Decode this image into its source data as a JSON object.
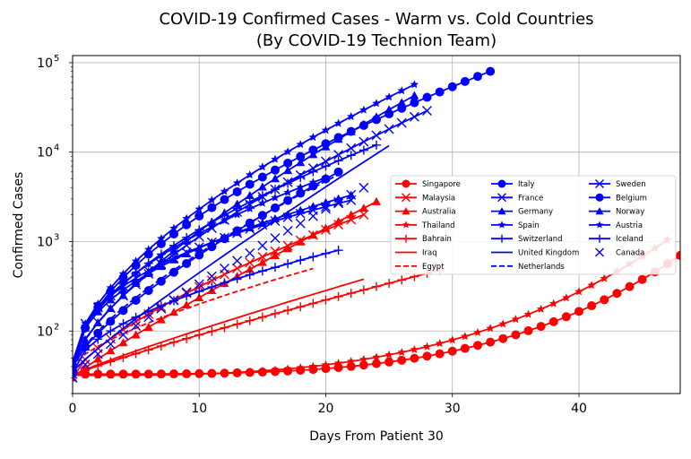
{
  "chart_data": {
    "type": "line",
    "title_line1": "COVID-19 Confirmed Cases - Warm vs. Cold Countries",
    "title_line2": "(By COVID-19 Technion Team)",
    "xlabel": "Days From Patient 30",
    "ylabel": "Confirmed Cases",
    "xlim": [
      0,
      48
    ],
    "ylim": [
      20,
      120000
    ],
    "yscale": "log",
    "grid": true,
    "legend_position": "center-right",
    "x_ticks": [
      {
        "value": 0,
        "label": "0"
      },
      {
        "value": 10,
        "label": "10"
      },
      {
        "value": 20,
        "label": "20"
      },
      {
        "value": 30,
        "label": "30"
      },
      {
        "value": 40,
        "label": "40"
      }
    ],
    "y_ticks": [
      {
        "value": 100,
        "base": "10",
        "exp": "2"
      },
      {
        "value": 1000,
        "base": "10",
        "exp": "3"
      },
      {
        "value": 10000,
        "base": "10",
        "exp": "4"
      },
      {
        "value": 100000,
        "base": "10",
        "exp": "5"
      }
    ],
    "series": [
      {
        "name": "Singapore",
        "color": "#ff0000",
        "marker": "circle",
        "dash": "solid",
        "start": 33,
        "end": 700,
        "n": 49,
        "curve": 3.5
      },
      {
        "name": "Malaysia",
        "color": "#ff0000",
        "marker": "x",
        "dash": "solid",
        "start": 30,
        "end": 2000,
        "n": 24,
        "curve": 0.7
      },
      {
        "name": "Australia",
        "color": "#ff0000",
        "marker": "triangle",
        "dash": "solid",
        "start": 30,
        "end": 2800,
        "n": 25,
        "curve": 0.9
      },
      {
        "name": "Thailand",
        "color": "#ff0000",
        "marker": "star",
        "dash": "solid",
        "start": 32,
        "end": 1050,
        "n": 48,
        "curve": 3.0
      },
      {
        "name": "Bahrain",
        "color": "#ff0000",
        "marker": "plus",
        "dash": "solid",
        "start": 32,
        "end": 480,
        "n": 30,
        "curve": 0.9
      },
      {
        "name": "Iraq",
        "color": "#ff0000",
        "marker": "none",
        "dash": "solid",
        "start": 32,
        "end": 380,
        "n": 24,
        "curve": 0.9
      },
      {
        "name": "Egypt",
        "color": "#ff0000",
        "marker": "none",
        "dash": "dashed",
        "start": 40,
        "end": 500,
        "n": 20,
        "curve": 0.7
      },
      {
        "name": "Italy",
        "color": "#0000ff",
        "marker": "circle",
        "dash": "solid",
        "start": 35,
        "end": 80000,
        "n": 34,
        "curve": 0.55
      },
      {
        "name": "France",
        "color": "#0000ff",
        "marker": "x",
        "dash": "solid",
        "start": 38,
        "end": 29000,
        "n": 29,
        "curve": 0.65
      },
      {
        "name": "Germany",
        "color": "#0000ff",
        "marker": "triangle",
        "dash": "solid",
        "start": 40,
        "end": 43000,
        "n": 28,
        "curve": 0.7
      },
      {
        "name": "Spain",
        "color": "#0000ff",
        "marker": "star",
        "dash": "solid",
        "start": 45,
        "end": 57000,
        "n": 28,
        "curve": 0.6
      },
      {
        "name": "Switzerland",
        "color": "#0000ff",
        "marker": "plus",
        "dash": "solid",
        "start": 40,
        "end": 12000,
        "n": 25,
        "curve": 0.55
      },
      {
        "name": "United Kingdom",
        "color": "#0000ff",
        "marker": "none",
        "dash": "solid",
        "start": 35,
        "end": 11800,
        "n": 26,
        "curve": 0.9
      },
      {
        "name": "Netherlands",
        "color": "#0000ff",
        "marker": "none",
        "dash": "dashed",
        "start": 38,
        "end": 5600,
        "n": 22,
        "curve": 0.7
      },
      {
        "name": "Sweden",
        "color": "#0000ff",
        "marker": "x",
        "dash": "solid",
        "start": 33,
        "end": 2900,
        "n": 23,
        "curve": 0.4
      },
      {
        "name": "Belgium",
        "color": "#0000ff",
        "marker": "circle",
        "dash": "solid",
        "start": 40,
        "end": 6000,
        "n": 22,
        "curve": 0.75
      },
      {
        "name": "Norway",
        "color": "#0000ff",
        "marker": "triangle",
        "dash": "solid",
        "start": 35,
        "end": 3300,
        "n": 23,
        "curve": 0.45
      },
      {
        "name": "Austria",
        "color": "#0000ff",
        "marker": "star",
        "dash": "solid",
        "start": 38,
        "end": 5200,
        "n": 21,
        "curve": 0.5
      },
      {
        "name": "Iceland",
        "color": "#0000ff",
        "marker": "plus",
        "dash": "solid",
        "start": 34,
        "end": 800,
        "n": 22,
        "curve": 0.55
      },
      {
        "name": "Canada",
        "color": "#0000ff",
        "marker": "x",
        "dash": "none",
        "start": 30,
        "end": 4000,
        "n": 24,
        "curve": 0.85
      }
    ]
  }
}
